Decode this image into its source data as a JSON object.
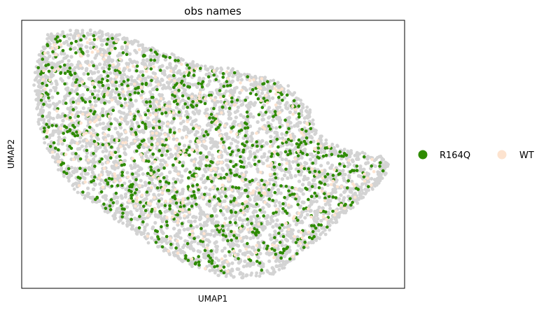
{
  "chart_data": {
    "type": "scatter",
    "title": "obs names",
    "xlabel": "UMAP1",
    "ylabel": "UMAP2",
    "grid": false,
    "ticks": false,
    "legend_position": "right",
    "background_points_color": "#d3d3d3",
    "series": [
      {
        "name": "R164Q",
        "color": "#2e8b00",
        "legend_color": "#2e8b00"
      },
      {
        "name": "WT",
        "color": "#fde3cf",
        "legend_color": "#fde3cf"
      }
    ]
  }
}
